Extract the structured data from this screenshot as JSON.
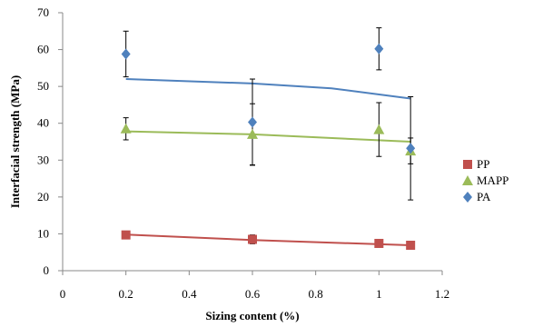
{
  "chart_data": {
    "type": "scatter",
    "xlabel": "Sizing content (%)",
    "ylabel": "Interfacial strength (MPa)",
    "xlim": [
      0,
      1.2
    ],
    "ylim": [
      0,
      70
    ],
    "x_ticks": [
      0,
      0.2,
      0.4,
      0.6,
      0.8,
      1,
      1.2
    ],
    "x_tick_labels": [
      "0",
      "0.2",
      "0.4",
      "0.6",
      "0.8",
      "1",
      "1.2"
    ],
    "y_ticks": [
      0,
      10,
      20,
      30,
      40,
      50,
      60,
      70
    ],
    "y_tick_labels": [
      "0",
      "10",
      "20",
      "30",
      "40",
      "50",
      "60",
      "70"
    ],
    "grid": false,
    "legend_position": "right",
    "series": [
      {
        "name": "PP",
        "marker": "square",
        "color": "#c0504d",
        "points": [
          {
            "x": 0.2,
            "y": 9.7,
            "err": 0.6
          },
          {
            "x": 0.6,
            "y": 8.5,
            "err": 1.2
          },
          {
            "x": 1.0,
            "y": 7.4,
            "err": 0.5
          },
          {
            "x": 1.1,
            "y": 6.9,
            "err": 0.4
          }
        ],
        "trend": [
          [
            0.2,
            9.8
          ],
          [
            0.6,
            8.3
          ],
          [
            1.1,
            6.9
          ]
        ]
      },
      {
        "name": "MAPP",
        "marker": "triangle",
        "color": "#9bbb59",
        "points": [
          {
            "x": 0.2,
            "y": 38.5,
            "err": 3.0
          },
          {
            "x": 0.6,
            "y": 37.0,
            "err": 8.3
          },
          {
            "x": 1.0,
            "y": 38.3,
            "err": 7.3
          },
          {
            "x": 1.1,
            "y": 32.5,
            "err": 3.5
          }
        ],
        "trend": [
          [
            0.2,
            37.8
          ],
          [
            0.6,
            37.0
          ],
          [
            1.1,
            35.0
          ]
        ]
      },
      {
        "name": "PA",
        "marker": "diamond",
        "color": "#4f81bd",
        "points": [
          {
            "x": 0.2,
            "y": 58.8,
            "err": 6.2
          },
          {
            "x": 0.6,
            "y": 40.3,
            "err": 11.7
          },
          {
            "x": 1.0,
            "y": 60.2,
            "err": 5.7
          },
          {
            "x": 1.1,
            "y": 33.2,
            "err": 14.0
          }
        ],
        "trend": [
          [
            0.2,
            52.0
          ],
          [
            0.6,
            50.8
          ],
          [
            0.85,
            49.5
          ],
          [
            1.1,
            46.7
          ]
        ]
      }
    ]
  }
}
